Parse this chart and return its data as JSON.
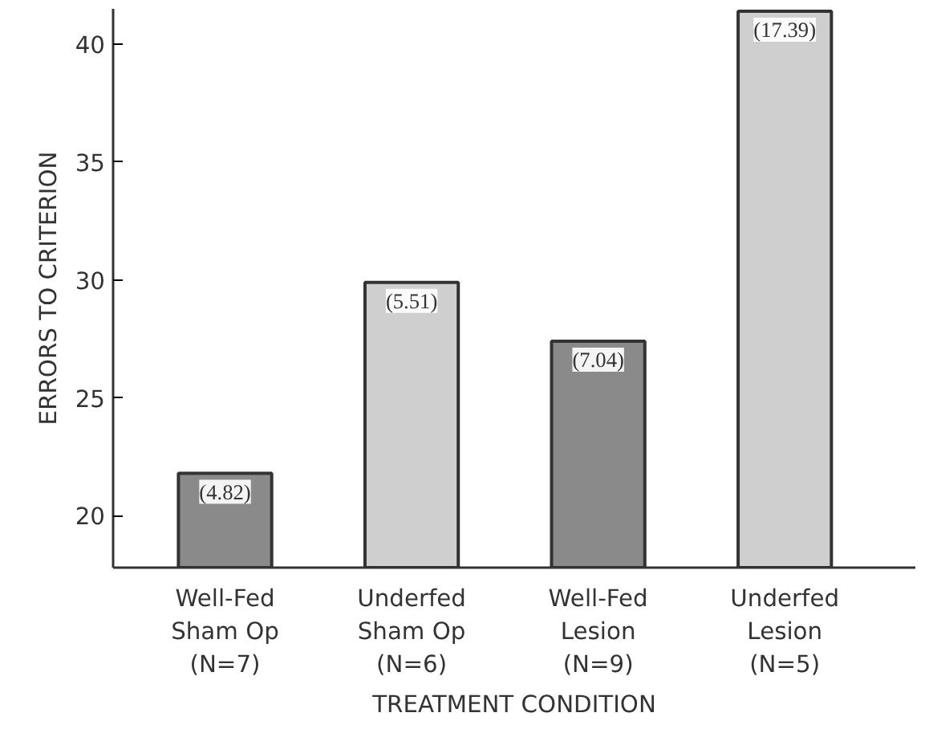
{
  "chart_data": {
    "type": "bar",
    "xlabel": "TREATMENT CONDITION",
    "ylabel": "ERRORS TO CRITERION",
    "categories": [
      "Well-Fed\nSham Op\n(N=7)",
      "Underfed\nSham Op\n(N=6)",
      "Well-Fed\nLesion\n(N=9)",
      "Underfed\nLesion\n(N=5)"
    ],
    "values": [
      21.8,
      29.9,
      27.4,
      41.4
    ],
    "colors": [
      "#8a8a8a",
      "#cfcfcf",
      "#8a8a8a",
      "#cfcfcf"
    ],
    "annotations": [
      {
        "text": "(4.82)",
        "x": "Well-Fed\nSham Op\n(N=7)",
        "y": 21.8
      },
      {
        "text": "(5.51)",
        "x": "Underfed\nSham Op\n(N=6)",
        "y": 29.9
      },
      {
        "text": "(7.04)",
        "x": "Well-Fed\nLesion\n(N=9)",
        "y": 27.4
      },
      {
        "text": "(17.39)",
        "x": "Underfed\nLesion\n(N=5)",
        "y": 41.4
      }
    ],
    "ylim": [
      17.8,
      41.5
    ],
    "yticks": [
      20,
      25,
      30,
      35,
      40
    ],
    "grid": false
  }
}
